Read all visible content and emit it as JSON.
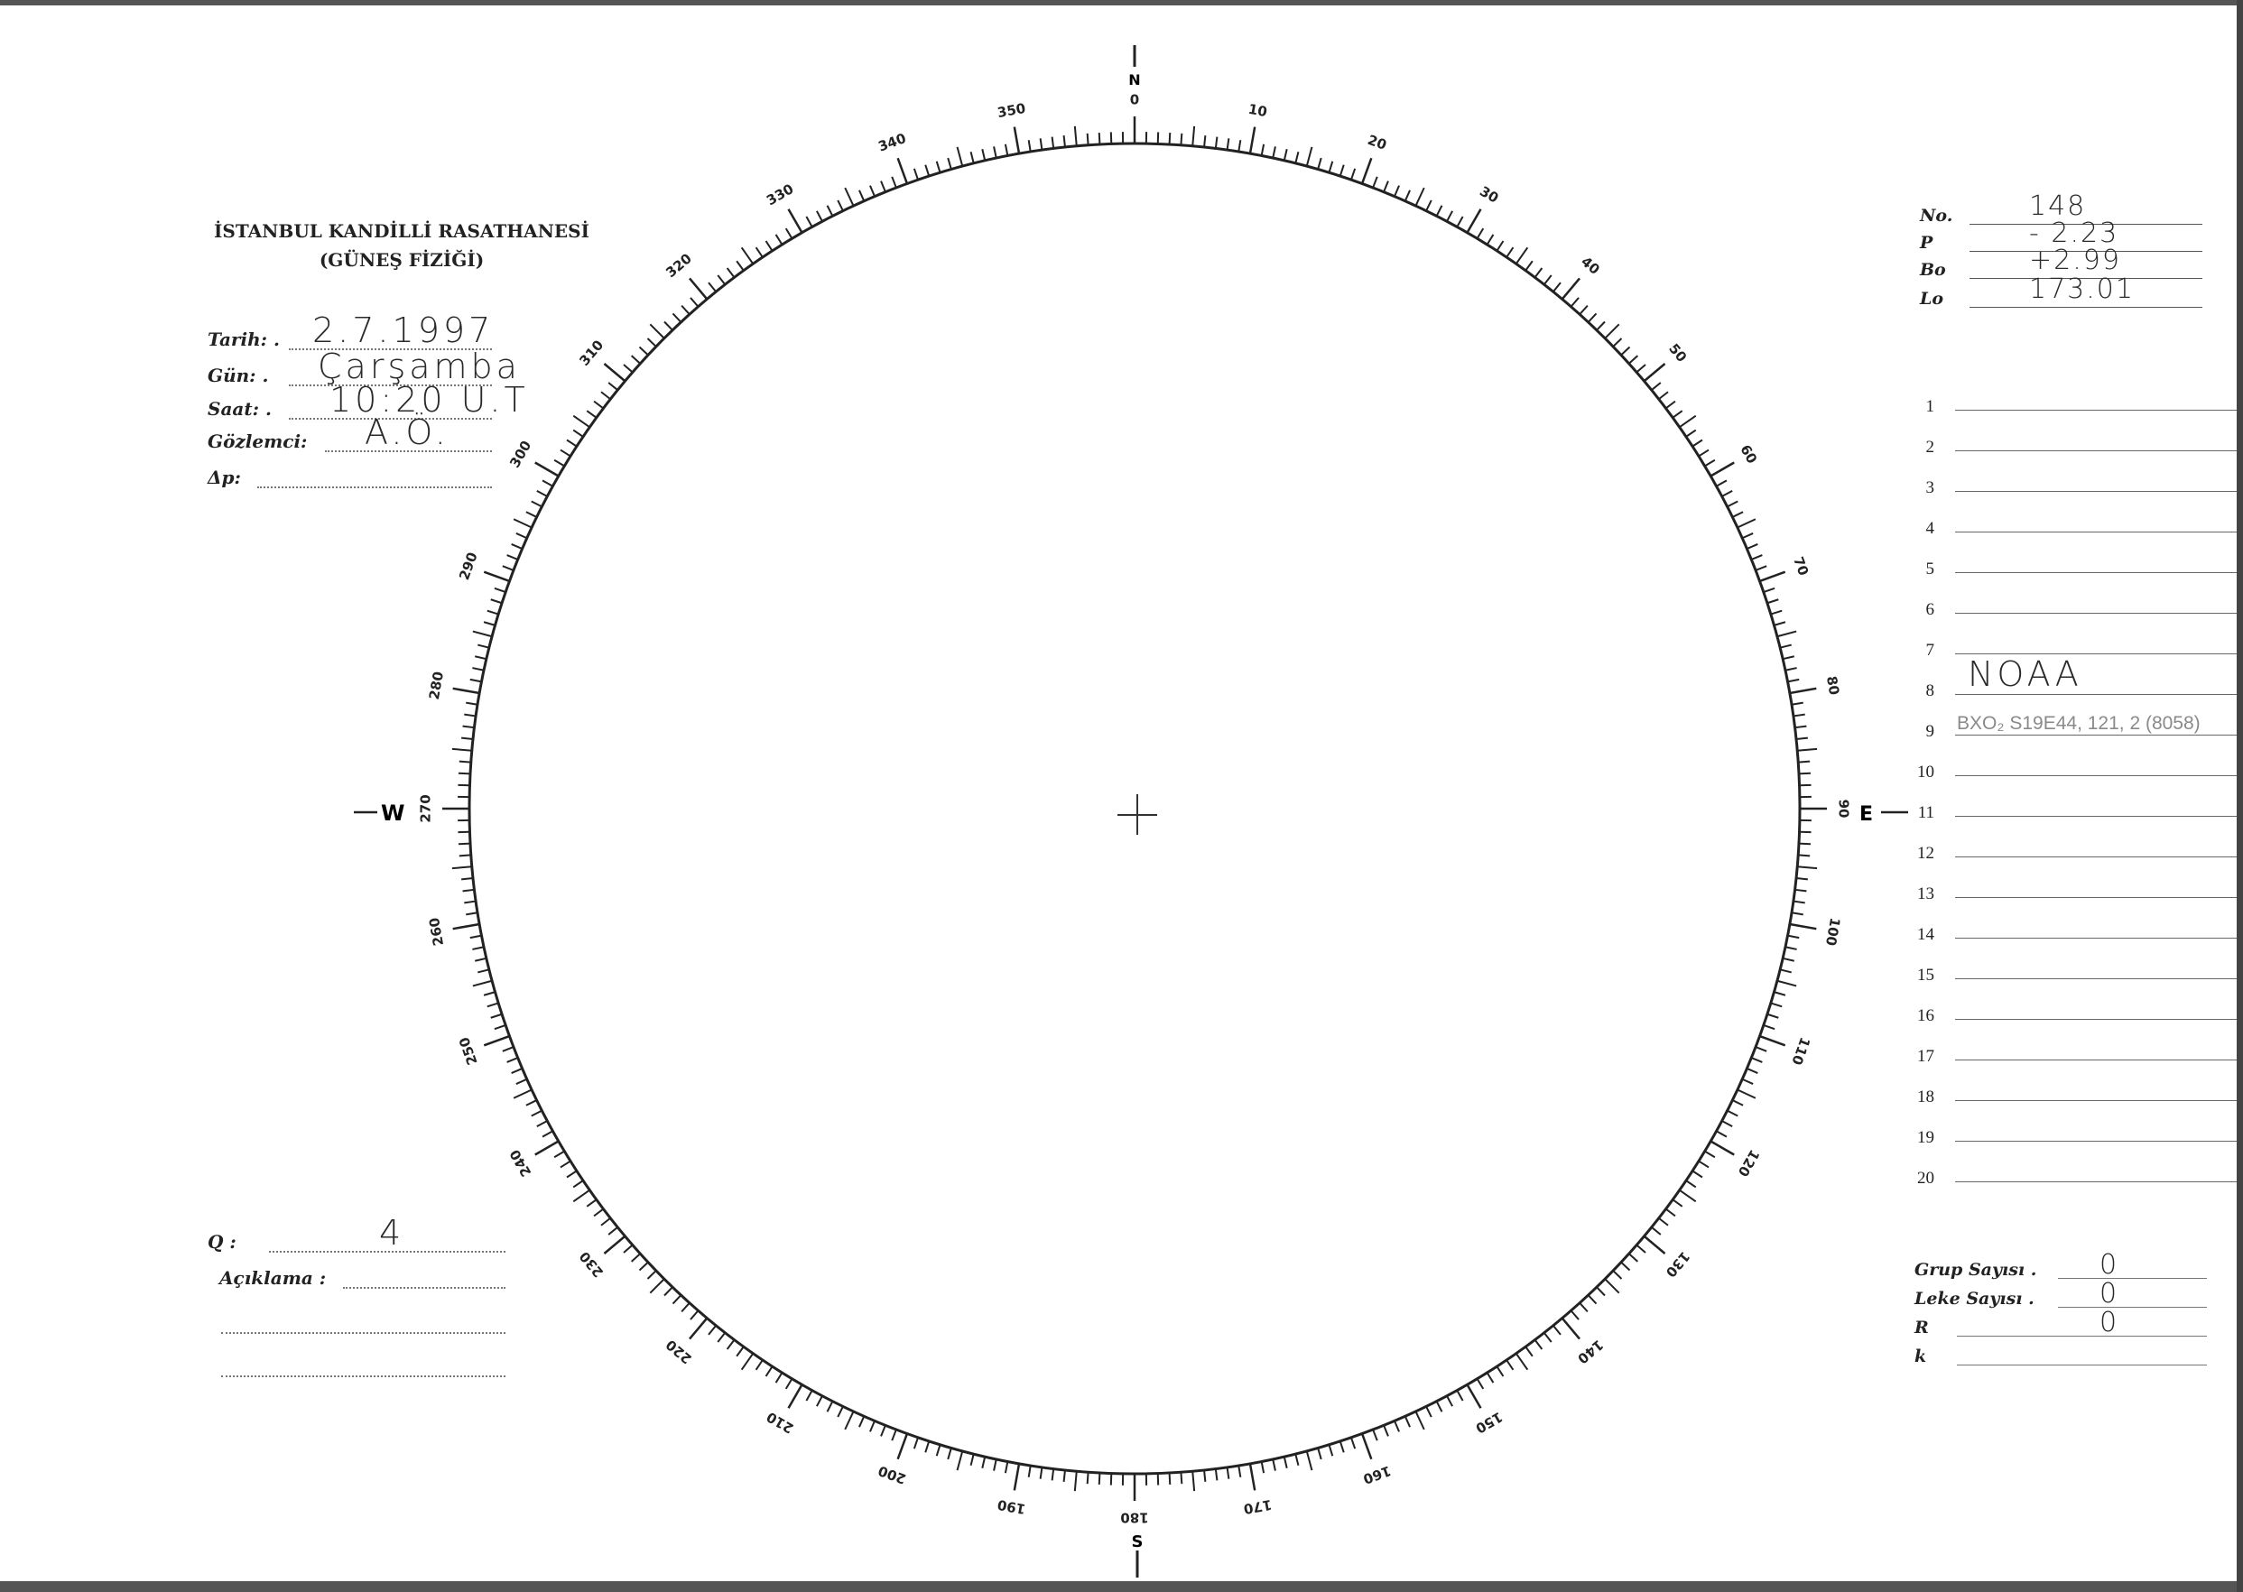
{
  "header": {
    "institution": "İSTANBUL KANDİLLİ RASATHANESİ",
    "department": "(GÜNEŞ FİZİĞİ)"
  },
  "observation": {
    "fields": [
      {
        "label": "Tarih: .",
        "value": "2.7.1997"
      },
      {
        "label": "Gün: .",
        "value": "Çarşamba"
      },
      {
        "label": "Saat: .",
        "value": "10:20 U.T"
      },
      {
        "label": "Gözlemci:",
        "value": "A.Ö."
      },
      {
        "label": "Δp:",
        "value": ""
      }
    ]
  },
  "ephemeris": {
    "fields": [
      {
        "label": "No.",
        "value": "148"
      },
      {
        "label": "P",
        "value": "- 2.23"
      },
      {
        "label": "Bo",
        "value": "+2.99"
      },
      {
        "label": "Lo",
        "value": "173.01"
      }
    ]
  },
  "rows": [
    {
      "num": "1",
      "value": ""
    },
    {
      "num": "2",
      "value": ""
    },
    {
      "num": "3",
      "value": ""
    },
    {
      "num": "4",
      "value": ""
    },
    {
      "num": "5",
      "value": ""
    },
    {
      "num": "6",
      "value": ""
    },
    {
      "num": "7",
      "value": ""
    },
    {
      "num": "8",
      "value": "NOAA"
    },
    {
      "num": "9",
      "value": "BXO₂ S19E44, 121, 2 (8058)"
    },
    {
      "num": "10",
      "value": ""
    },
    {
      "num": "11",
      "value": ""
    },
    {
      "num": "12",
      "value": ""
    },
    {
      "num": "13",
      "value": ""
    },
    {
      "num": "14",
      "value": ""
    },
    {
      "num": "15",
      "value": ""
    },
    {
      "num": "16",
      "value": ""
    },
    {
      "num": "17",
      "value": ""
    },
    {
      "num": "18",
      "value": ""
    },
    {
      "num": "19",
      "value": ""
    },
    {
      "num": "20",
      "value": ""
    }
  ],
  "quality": {
    "label": "Q :",
    "value": "4"
  },
  "remarks": {
    "label": "Açıklama :",
    "value": ""
  },
  "counts": {
    "fields": [
      {
        "label": "Grup Sayısı .",
        "value": "0"
      },
      {
        "label": "Leke Sayısı .",
        "value": "0"
      },
      {
        "label": "R",
        "value": "0"
      },
      {
        "label": "k",
        "value": ""
      }
    ]
  },
  "dial": {
    "directions": {
      "north": "N",
      "east": "E",
      "south": "S",
      "west": "W"
    },
    "tick_labels": [
      "0",
      "10",
      "20",
      "30",
      "40",
      "50",
      "60",
      "70",
      "80",
      "90",
      "100",
      "110",
      "120",
      "130",
      "140",
      "150",
      "160",
      "170",
      "180",
      "190",
      "200",
      "210",
      "220",
      "230",
      "240",
      "250",
      "260",
      "270",
      "280",
      "290",
      "300",
      "310",
      "320",
      "330",
      "340",
      "350"
    ]
  }
}
